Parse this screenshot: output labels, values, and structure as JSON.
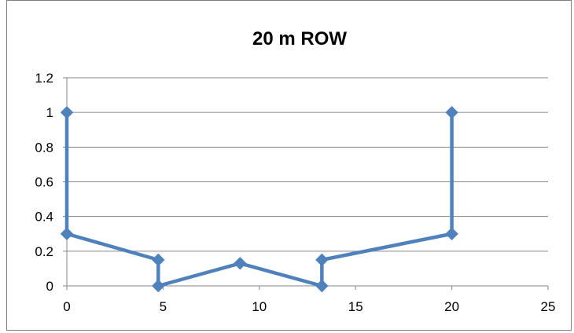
{
  "chart_data": {
    "type": "scatter",
    "title": "20 m ROW",
    "xlabel": "",
    "ylabel": "",
    "xlim": [
      0,
      25
    ],
    "ylim": [
      0,
      1.2
    ],
    "xticks": [
      0,
      5,
      10,
      15,
      20,
      25
    ],
    "yticks": [
      0,
      0.2,
      0.4,
      0.6,
      0.8,
      1,
      1.2
    ],
    "ytick_labels": [
      "0",
      "0.2",
      "0.4",
      "0.6",
      "0.8",
      "1",
      "1.2"
    ],
    "xtick_labels": [
      "0",
      "5",
      "10",
      "15",
      "20",
      "25"
    ],
    "grid": "horizontal",
    "legend": "none",
    "series": [
      {
        "color": "#4f81bd",
        "marker": "diamond",
        "points": [
          {
            "x": 0,
            "y": 1
          },
          {
            "x": 0,
            "y": 0.3
          },
          {
            "x": 4.75,
            "y": 0.15
          },
          {
            "x": 4.75,
            "y": 0
          },
          {
            "x": 9,
            "y": 0.13
          },
          {
            "x": 13.25,
            "y": 0
          },
          {
            "x": 13.25,
            "y": 0.15
          },
          {
            "x": 20,
            "y": 0.3
          },
          {
            "x": 20,
            "y": 1
          }
        ]
      }
    ]
  }
}
